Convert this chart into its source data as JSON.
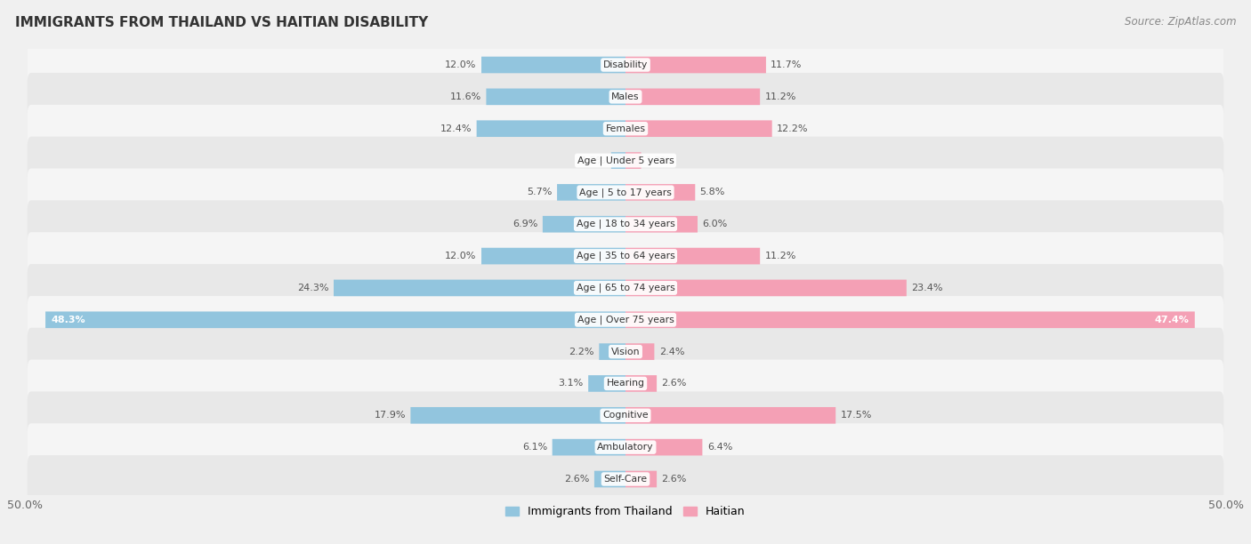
{
  "title": "IMMIGRANTS FROM THAILAND VS HAITIAN DISABILITY",
  "source": "Source: ZipAtlas.com",
  "categories": [
    "Disability",
    "Males",
    "Females",
    "Age | Under 5 years",
    "Age | 5 to 17 years",
    "Age | 18 to 34 years",
    "Age | 35 to 64 years",
    "Age | 65 to 74 years",
    "Age | Over 75 years",
    "Vision",
    "Hearing",
    "Cognitive",
    "Ambulatory",
    "Self-Care"
  ],
  "thailand_values": [
    12.0,
    11.6,
    12.4,
    1.2,
    5.7,
    6.9,
    12.0,
    24.3,
    48.3,
    2.2,
    3.1,
    17.9,
    6.1,
    2.6
  ],
  "haitian_values": [
    11.7,
    11.2,
    12.2,
    1.3,
    5.8,
    6.0,
    11.2,
    23.4,
    47.4,
    2.4,
    2.6,
    17.5,
    6.4,
    2.6
  ],
  "thailand_color": "#92c5de",
  "haitian_color": "#f4a0b5",
  "axis_max": 50.0,
  "bg_color": "#f0f0f0",
  "row_color_even": "#f5f5f5",
  "row_color_odd": "#e8e8e8",
  "label_color": "#555555",
  "title_color": "#333333",
  "legend_labels": [
    "Immigrants from Thailand",
    "Haitian"
  ]
}
